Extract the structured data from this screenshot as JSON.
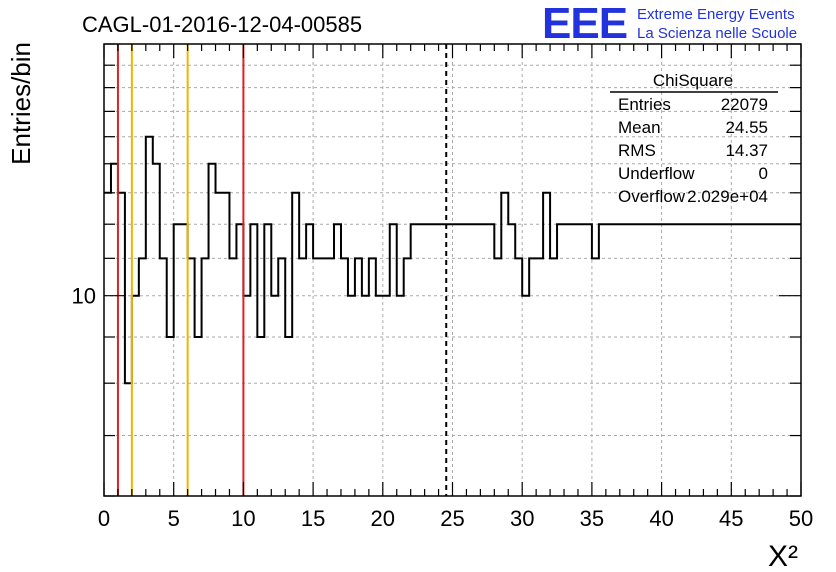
{
  "header": {
    "run_title": "CAGL-01-2016-12-04-00585",
    "logo_text": "EEE",
    "logo_line1": "Extreme Energy Events",
    "logo_line2": "La Scienza nelle Scuole"
  },
  "stats": {
    "title": "ChiSquare",
    "rows": [
      {
        "label": "Entries",
        "value": "22079"
      },
      {
        "label": "Mean",
        "value": "24.55"
      },
      {
        "label": "RMS",
        "value": "14.37"
      },
      {
        "label": "Underflow",
        "value": "0"
      },
      {
        "label": "Overflow",
        "value": "2.029e+04"
      }
    ]
  },
  "colors": {
    "red_lines": "#dd2222",
    "yellow_lines": "#f0b400",
    "logo": "#2233dd",
    "grid": "#aaaaaa"
  },
  "chart_data": {
    "type": "histogram",
    "xlabel": "X²",
    "ylabel": "Entries/bin",
    "xlim": [
      0,
      50
    ],
    "ylim": [
      6,
      19
    ],
    "log_y": true,
    "grid": true,
    "x_ticks": [
      0,
      5,
      10,
      15,
      20,
      25,
      30,
      35,
      40,
      45,
      50
    ],
    "y_tick_labels": [
      {
        "value": 10,
        "label": "10"
      }
    ],
    "bin_width": 0.5,
    "bin_start": 0,
    "values": [
      13,
      14,
      13,
      8,
      10,
      11,
      15,
      14,
      11,
      9,
      12,
      12,
      11,
      9,
      11,
      14,
      13,
      13,
      11,
      12,
      10,
      12,
      9,
      12,
      10,
      11,
      9,
      13,
      11,
      12,
      11,
      11,
      11,
      12,
      11,
      10,
      11,
      10,
      11,
      10,
      10,
      12,
      10,
      11,
      12,
      12,
      12,
      12,
      12,
      12,
      12,
      12,
      12,
      12,
      12,
      12,
      11,
      13,
      12,
      11,
      10,
      11,
      11,
      13,
      11,
      12,
      12,
      12,
      12,
      12,
      11,
      12,
      12,
      12,
      12,
      12,
      12,
      12,
      12,
      12,
      12,
      12,
      12,
      12,
      12,
      12,
      12,
      12,
      12,
      12,
      12,
      12,
      12,
      12,
      12,
      12,
      12,
      12,
      12,
      12
    ],
    "vertical_lines": [
      {
        "x": 1,
        "color": "red",
        "style": "solid"
      },
      {
        "x": 2,
        "color": "yellow",
        "style": "solid"
      },
      {
        "x": 6,
        "color": "yellow",
        "style": "solid"
      },
      {
        "x": 10,
        "color": "red",
        "style": "solid"
      },
      {
        "x": 24.55,
        "color": "black",
        "style": "dashed"
      }
    ]
  }
}
